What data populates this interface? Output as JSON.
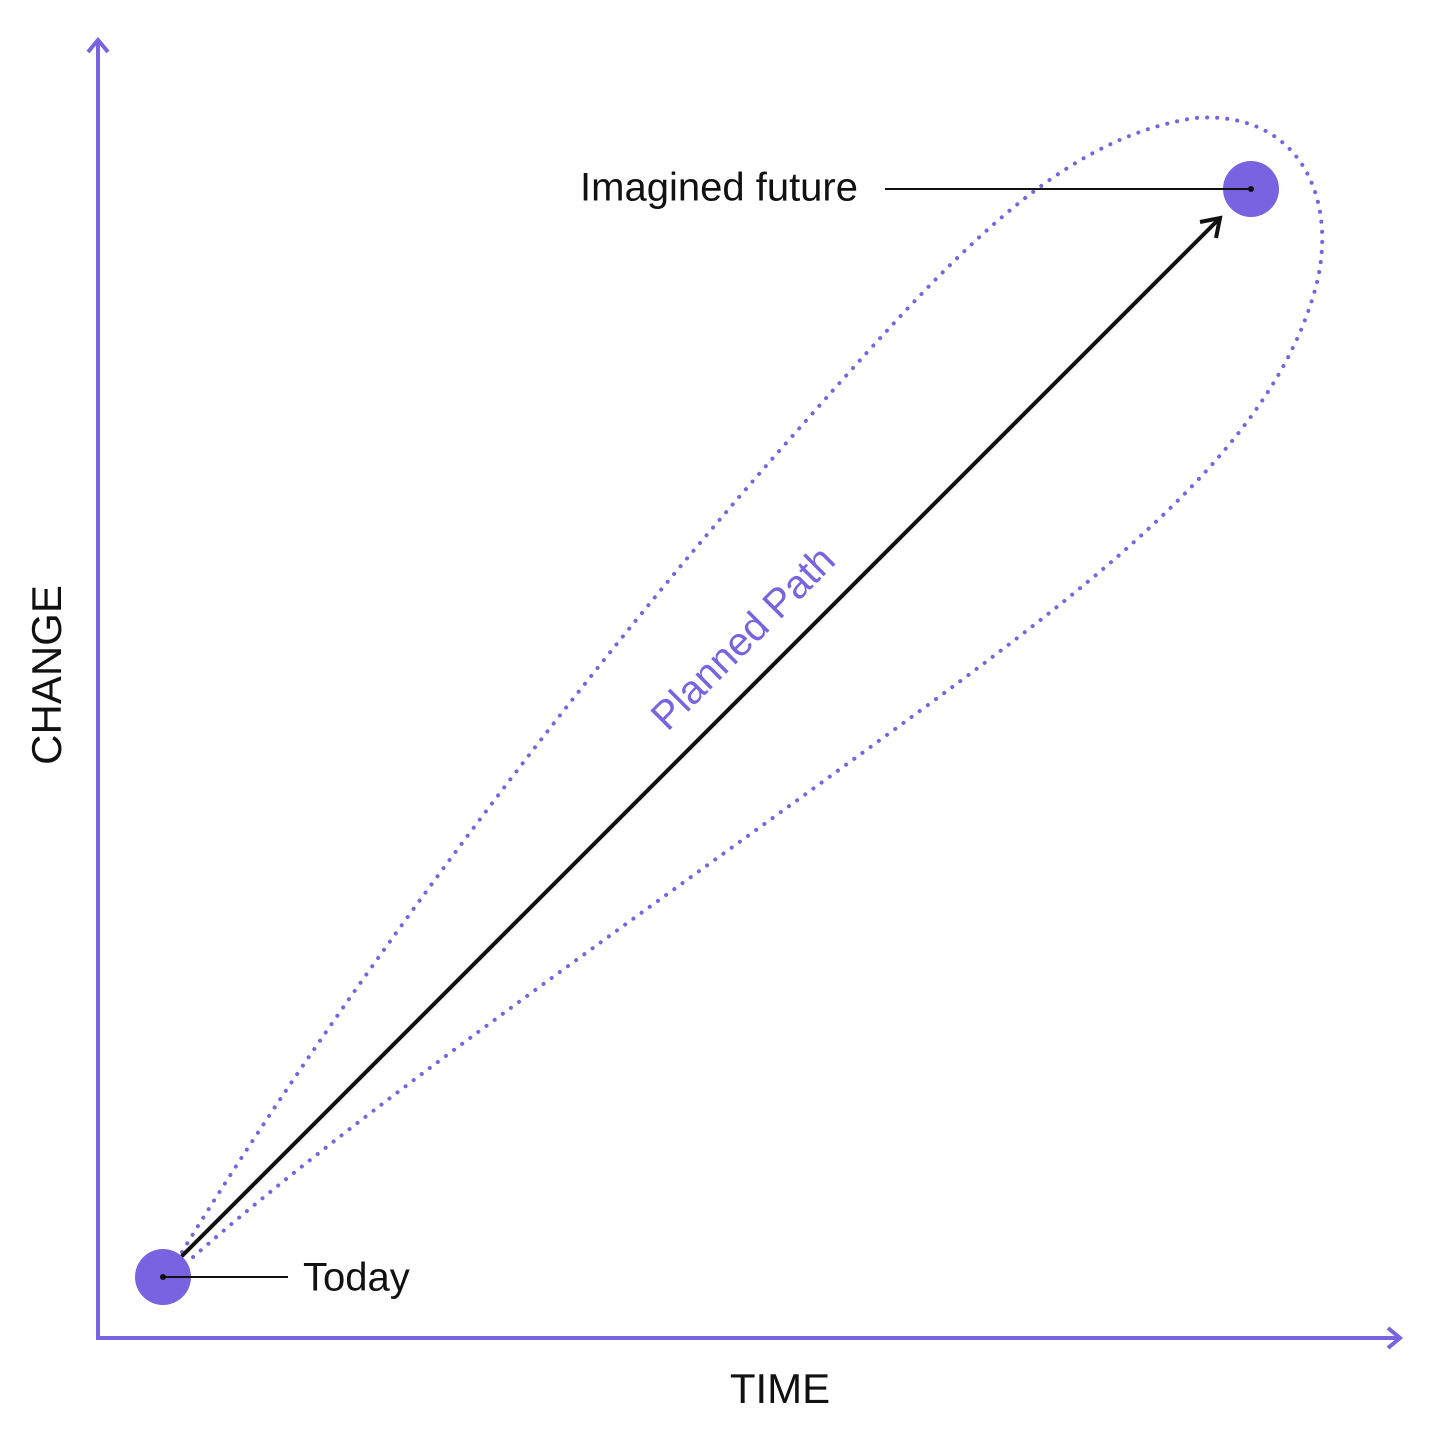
{
  "axes": {
    "y_label": "CHANGE",
    "x_label": "TIME"
  },
  "nodes": [
    {
      "label": "Today"
    },
    {
      "label": "Imagined future"
    }
  ],
  "path": {
    "label": "Planned Path"
  }
}
